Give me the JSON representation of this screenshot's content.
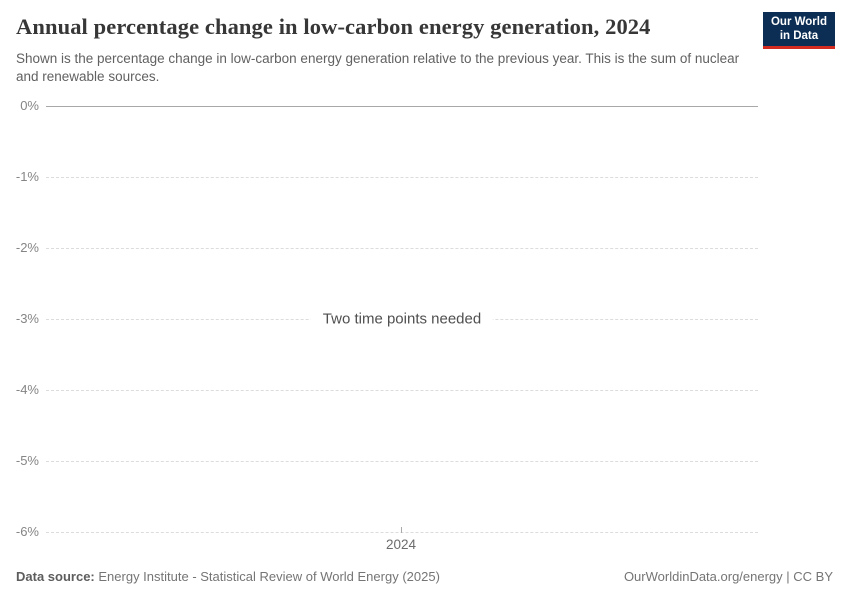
{
  "header": {
    "title": "Annual percentage change in low-carbon energy generation, 2024",
    "subtitle": "Shown is the percentage change in low-carbon energy generation relative to the previous year. This is the sum of nuclear and renewable sources.",
    "logo": {
      "line1": "Our World",
      "line2": "in Data",
      "bg_color": "#0d2e54",
      "accent_color": "#d42b21"
    }
  },
  "chart_data": {
    "type": "line",
    "title": "Annual percentage change in low-carbon energy generation, 2024",
    "series": [],
    "x": [
      2024
    ],
    "empty_message": "Two time points needed",
    "xlabel": "",
    "ylabel": "",
    "ylim": [
      -6,
      0
    ],
    "y_ticks": [
      "0%",
      "-1%",
      "-2%",
      "-3%",
      "-4%",
      "-5%",
      "-6%"
    ],
    "y_tick_values": [
      0,
      -1,
      -2,
      -3,
      -4,
      -5,
      -6
    ],
    "x_ticks": [
      "2024"
    ],
    "grid": true,
    "legend": "none",
    "colors": {
      "zero_gridline": "#a8a8a8",
      "dashed_gridline": "#dcdcdc"
    }
  },
  "footer": {
    "datasource_label": "Data source:",
    "datasource_value": "Energy Institute - Statistical Review of World Energy (2025)",
    "attribution": "OurWorldinData.org/energy | CC BY"
  }
}
